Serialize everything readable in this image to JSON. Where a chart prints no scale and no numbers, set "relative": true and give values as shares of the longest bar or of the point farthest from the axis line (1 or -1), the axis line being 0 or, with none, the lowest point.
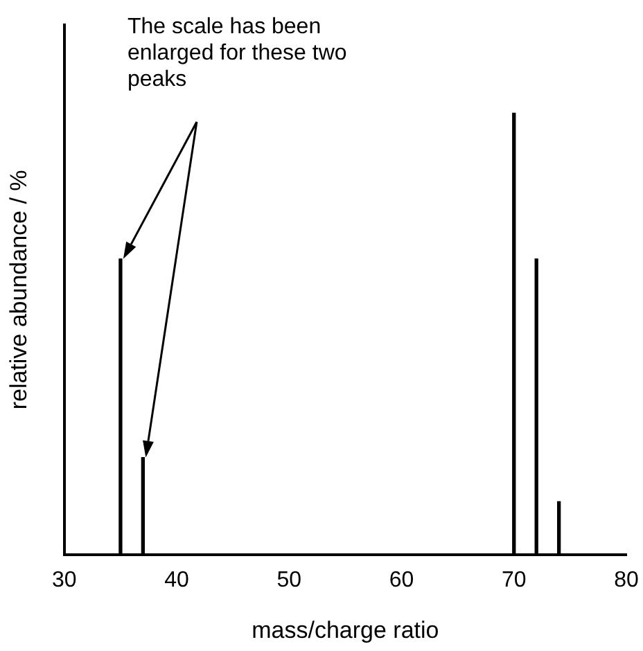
{
  "chart_data": {
    "type": "bar",
    "relative": true,
    "xlabel": "mass/charge ratio",
    "ylabel": "relative abundance / %",
    "annotations": [
      "The scale has been enlarged for these two peaks"
    ],
    "x": [
      35,
      37,
      70,
      72,
      74
    ],
    "values": [
      0.67,
      0.22,
      1,
      0.67,
      0.12
    ],
    "color": "#000000",
    "xlim": [
      30,
      80
    ],
    "xticks": [
      30,
      40,
      50,
      60,
      70,
      80
    ],
    "grid": false,
    "legend": false
  }
}
